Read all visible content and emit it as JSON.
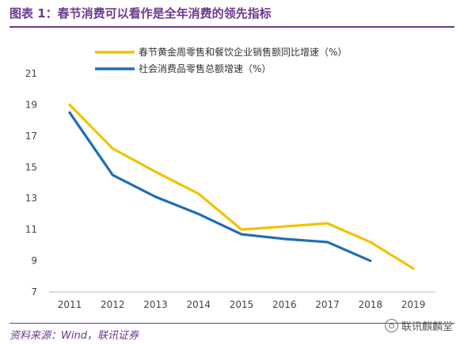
{
  "header": {
    "title": "图表 1：春节消费可以看作是全年消费的领先指标"
  },
  "footer": {
    "source": "资料来源：Wind，联讯证券",
    "watermark": "联讯麒麟堂"
  },
  "colors": {
    "accent": "#6b3a8f",
    "series_gold": "#f2c200",
    "series_blue": "#1f6db5"
  },
  "chart_data": {
    "type": "line",
    "x": [
      "2011",
      "2012",
      "2013",
      "2014",
      "2015",
      "2016",
      "2017",
      "2018",
      "2019"
    ],
    "ylim": [
      7,
      21
    ],
    "yticks": [
      "7",
      "9",
      "11",
      "13",
      "15",
      "17",
      "19",
      "21"
    ],
    "legend_position": "top-center",
    "grid": false,
    "series": [
      {
        "name": "春节黄金周零售和餐饮企业销售额同比增速（%）",
        "color": "#f2c200",
        "values": [
          19.0,
          16.2,
          14.7,
          13.3,
          11.0,
          11.2,
          11.4,
          10.2,
          8.5
        ]
      },
      {
        "name": "社会消费品零售总额增速（%）",
        "color": "#1f6db5",
        "values": [
          18.5,
          14.5,
          13.1,
          12.0,
          10.7,
          10.4,
          10.2,
          9.0,
          null
        ]
      }
    ]
  }
}
